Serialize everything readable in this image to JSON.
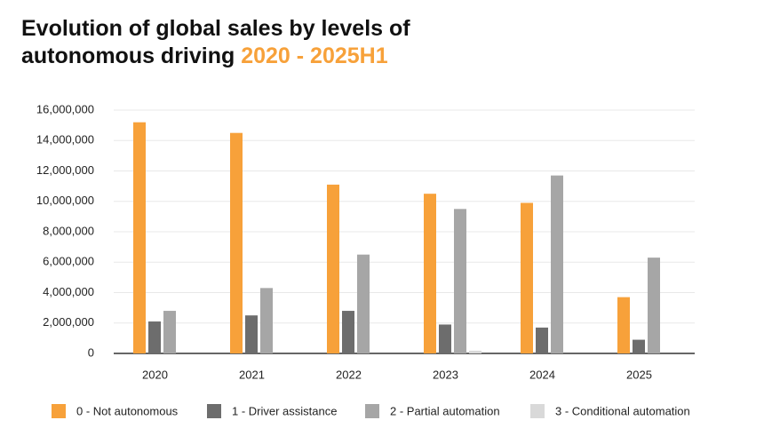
{
  "chart_data": {
    "type": "bar",
    "title": "Evolution of global sales by levels of autonomous driving",
    "title_highlight": "2020 - 2025H1",
    "title_highlight_color": "#f7a13a",
    "categories": [
      "2020",
      "2021",
      "2022",
      "2023",
      "2024",
      "2025"
    ],
    "series": [
      {
        "name": "0 - Not autonomous",
        "color": "#f7a13a",
        "values": [
          15200000,
          14500000,
          11100000,
          10500000,
          9900000,
          3700000
        ]
      },
      {
        "name": "1 - Driver assistance",
        "color": "#6d6d6d",
        "values": [
          2100000,
          2500000,
          2800000,
          1900000,
          1700000,
          900000
        ]
      },
      {
        "name": "2 - Partial automation",
        "color": "#a6a6a6",
        "values": [
          2800000,
          4300000,
          6500000,
          9500000,
          11700000,
          6300000
        ]
      },
      {
        "name": "3 - Conditional automation",
        "color": "#d9d9d9",
        "values": [
          0,
          0,
          0,
          180000,
          0,
          0
        ]
      }
    ],
    "ylim": [
      0,
      16000000
    ],
    "yticks": [
      0,
      {
        "value": 2000000,
        "label": "2,000,000"
      },
      {
        "value": 4000000,
        "label": "4,000,000"
      },
      {
        "value": 6000000,
        "label": "6,000,000"
      },
      {
        "value": 8000000,
        "label": "8,000,000"
      },
      {
        "value": 10000000,
        "label": "10,000,000"
      },
      {
        "value": 12000000,
        "label": "12,000,000"
      },
      {
        "value": 14000000,
        "label": "14,000,000"
      },
      {
        "value": 16000000,
        "label": "16,000,000"
      }
    ],
    "grid": true,
    "legend": "bottom"
  }
}
